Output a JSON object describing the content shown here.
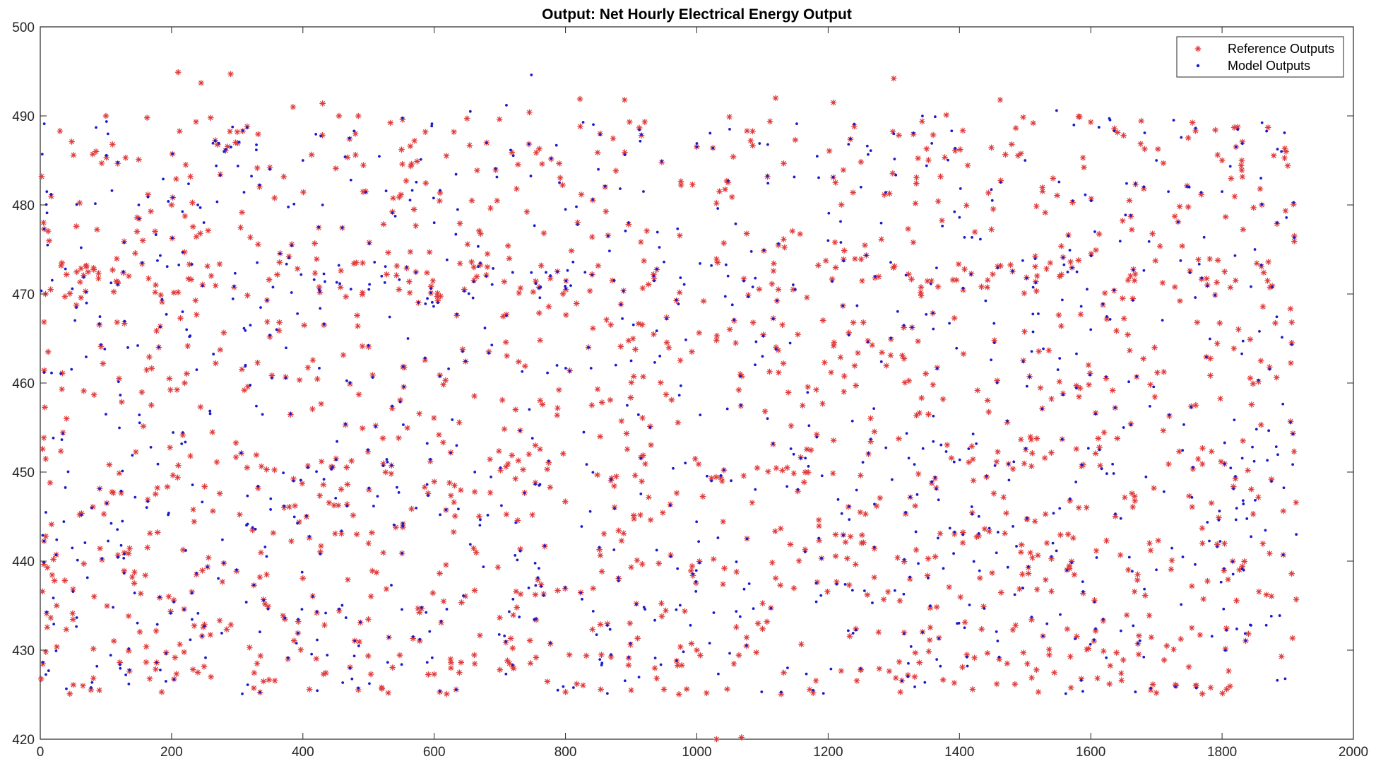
{
  "chart_data": {
    "type": "scatter",
    "title": "Output: Net Hourly Electrical Energy Output",
    "xlabel": "",
    "ylabel": "",
    "xlim": [
      0,
      2000
    ],
    "ylim": [
      420,
      500
    ],
    "xticks": [
      "0",
      "200",
      "400",
      "600",
      "800",
      "1000",
      "1200",
      "1400",
      "1600",
      "1800",
      "2000"
    ],
    "yticks": [
      "420",
      "430",
      "440",
      "450",
      "460",
      "470",
      "480",
      "490",
      "500"
    ],
    "grid": false,
    "legend_position": "top-right",
    "n_points": 1914,
    "series": [
      {
        "name": "Reference Outputs",
        "marker": "asterisk",
        "color": "#e03a3a",
        "sample_points": [
          [
            2,
            483.2
          ],
          [
            5,
            478.0
          ],
          [
            8,
            470.0
          ],
          [
            12,
            463.5
          ],
          [
            15,
            448.8
          ],
          [
            20,
            440.2
          ],
          [
            25,
            435.0
          ],
          [
            30,
            488.3
          ],
          [
            33,
            473.5
          ],
          [
            40,
            456.0
          ],
          [
            45,
            425.1
          ],
          [
            55,
            477.6
          ],
          [
            60,
            445.2
          ],
          [
            65,
            426.0
          ],
          [
            80,
            485.7
          ],
          [
            85,
            486.0
          ],
          [
            90,
            425.5
          ],
          [
            100,
            490.0
          ],
          [
            110,
            486.8
          ],
          [
            120,
            460.5
          ],
          [
            130,
            485.3
          ],
          [
            150,
            485.1
          ],
          [
            160,
            438.4
          ],
          [
            175,
            470.2
          ],
          [
            185,
            425.3
          ],
          [
            200,
            480.0
          ],
          [
            210,
            494.9
          ],
          [
            220,
            460.0
          ],
          [
            240,
            427.5
          ],
          [
            245,
            493.7
          ],
          [
            260,
            427.0
          ],
          [
            290,
            494.7
          ],
          [
            300,
            488.2
          ],
          [
            315,
            450.5
          ],
          [
            340,
            426.5
          ],
          [
            385,
            491.0
          ],
          [
            410,
            425.6
          ],
          [
            430,
            491.4
          ],
          [
            455,
            490.0
          ],
          [
            480,
            488.0
          ],
          [
            500,
            442.0
          ],
          [
            520,
            425.8
          ],
          [
            530,
            425.2
          ],
          [
            570,
            487.2
          ],
          [
            600,
            427.3
          ],
          [
            630,
            488.2
          ],
          [
            650,
            489.7
          ],
          [
            700,
            427.8
          ],
          [
            745,
            490.4
          ],
          [
            760,
            486.3
          ],
          [
            800,
            425.3
          ],
          [
            822,
            491.9
          ],
          [
            890,
            491.8
          ],
          [
            900,
            425.5
          ],
          [
            950,
            425.6
          ],
          [
            1000,
            430.0
          ],
          [
            1030,
            420.0
          ],
          [
            1068,
            420.2
          ],
          [
            1120,
            492.0
          ],
          [
            1150,
            487.3
          ],
          [
            1208,
            491.5
          ],
          [
            1250,
            427.8
          ],
          [
            1300,
            494.2
          ],
          [
            1310,
            425.3
          ],
          [
            1350,
            486.3
          ],
          [
            1380,
            490.1
          ],
          [
            1420,
            425.6
          ],
          [
            1462,
            491.8
          ],
          [
            1510,
            426.9
          ],
          [
            1555,
            466.4
          ],
          [
            1600,
            489.3
          ],
          [
            1650,
            487.8
          ],
          [
            1700,
            425.2
          ],
          [
            1730,
            426.0
          ],
          [
            1770,
            425.1
          ],
          [
            1800,
            485.0
          ],
          [
            1830,
            483.9
          ],
          [
            1870,
            488.7
          ],
          [
            1900,
            484.4
          ],
          [
            1913,
            435.7
          ]
        ]
      },
      {
        "name": "Model Outputs",
        "marker": "dot",
        "color": "#1a1acc",
        "sample_points": [
          [
            3,
            485.7
          ],
          [
            10,
            481.5
          ],
          [
            25,
            442.4
          ],
          [
            70,
            470.2
          ],
          [
            85,
            488.7
          ],
          [
            100,
            456.5
          ],
          [
            150,
            480.0
          ],
          [
            195,
            480.4
          ],
          [
            240,
            480.0
          ],
          [
            280,
            486.0
          ],
          [
            320,
            466.5
          ],
          [
            360,
            466.0
          ],
          [
            400,
            485.0
          ],
          [
            430,
            480.0
          ],
          [
            478,
            488.3
          ],
          [
            520,
            472.0
          ],
          [
            560,
            465.0
          ],
          [
            600,
            478.0
          ],
          [
            633,
            476.7
          ],
          [
            655,
            490.5
          ],
          [
            710,
            491.2
          ],
          [
            748,
            494.6
          ],
          [
            760,
            448.5
          ],
          [
            800,
            479.5
          ],
          [
            850,
            484.0
          ],
          [
            900,
            462.5
          ],
          [
            950,
            473.6
          ],
          [
            1000,
            486.9
          ],
          [
            1050,
            488.5
          ],
          [
            1100,
            463.0
          ],
          [
            1150,
            470.5
          ],
          [
            1200,
            476.0
          ],
          [
            1250,
            482.0
          ],
          [
            1300,
            488.0
          ],
          [
            1350,
            484.4
          ],
          [
            1400,
            478.6
          ],
          [
            1450,
            480.5
          ],
          [
            1500,
            485.0
          ],
          [
            1548,
            490.6
          ],
          [
            1600,
            466.0
          ],
          [
            1650,
            455.0
          ],
          [
            1700,
            485.0
          ],
          [
            1750,
            482.0
          ],
          [
            1800,
            481.5
          ],
          [
            1850,
            475.0
          ],
          [
            1895,
            488.1
          ],
          [
            1913,
            443.0
          ]
        ]
      }
    ]
  }
}
